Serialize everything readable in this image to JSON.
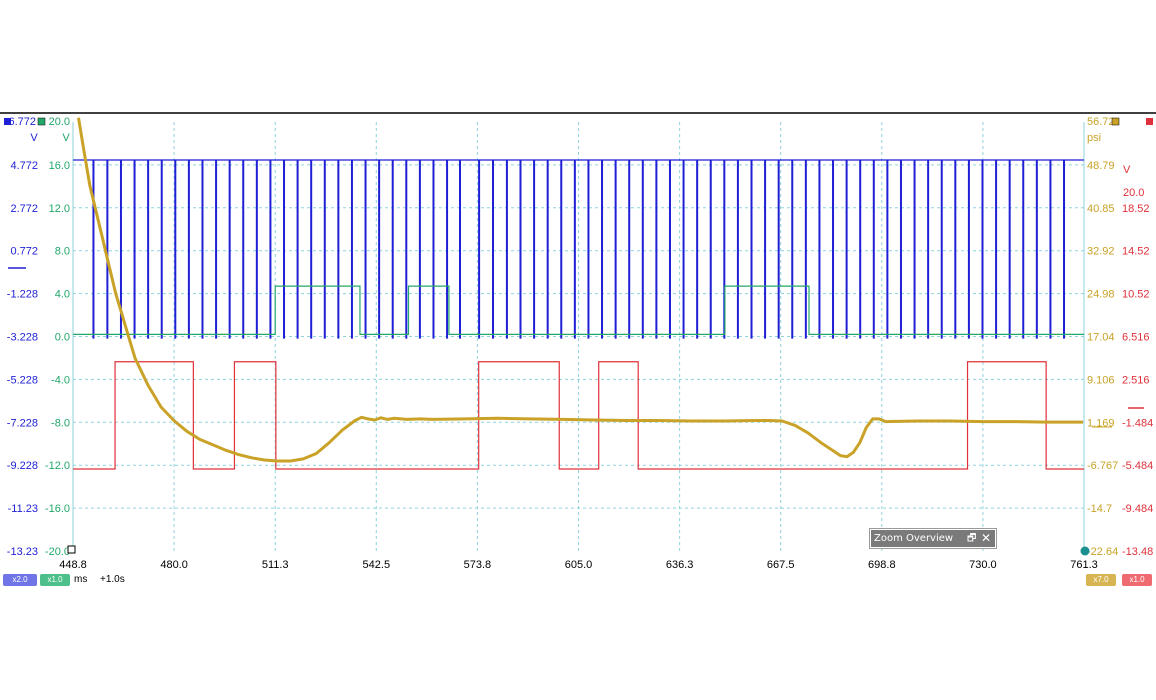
{
  "chart_data": {
    "type": "line",
    "title": "",
    "xlabel": "ms",
    "x_ticks": [
      "448.8",
      "480.0",
      "511.3",
      "542.5",
      "573.8",
      "605.0",
      "636.3",
      "667.5",
      "698.8",
      "730.0",
      "761.3"
    ],
    "xlim": [
      448.8,
      761.3
    ],
    "time_offset": "+1.0s",
    "grid": true,
    "axes": {
      "blue": {
        "unit": "V",
        "top": "6.772",
        "ticks": [
          "4.772",
          "2.772",
          "0.772",
          "-1.228",
          "-3.228",
          "-5.228",
          "-7.228",
          "-9.228",
          "-11.23",
          "-13.23"
        ],
        "color": "#1f1fd6"
      },
      "green": {
        "unit": "V",
        "top": "20.0",
        "ticks": [
          "16.0",
          "12.0",
          "8.0",
          "4.0",
          "0.0",
          "-4.0",
          "-8.0",
          "-12.0",
          "-16.0",
          "-20.0"
        ],
        "color": "#22a86a"
      },
      "gold": {
        "unit": "psi",
        "top": "56.72",
        "ticks": [
          "48.79",
          "40.85",
          "32.92",
          "24.98",
          "17.04",
          "9.106",
          "1.169",
          "-6.767",
          "-14.7",
          "-22.64"
        ],
        "color": "#c9a227"
      },
      "red": {
        "unit": "V",
        "top": "20.0",
        "ticks": [
          "18.52",
          "14.52",
          "10.52",
          "6.516",
          "2.516",
          "-1.484",
          "-5.484",
          "-9.484",
          "-13.48"
        ],
        "color": "#e0303a"
      }
    },
    "series": [
      {
        "name": "",
        "color": "#1f1fd6",
        "kind": "pulse-train",
        "high": 5.0,
        "low": -3.3,
        "pulse_times": [
          455,
          459.3,
          463.5,
          467.7,
          471.9,
          476.1,
          480.3,
          484.5,
          488.7,
          492.9,
          497.1,
          501.3,
          505.5,
          509.7,
          513.9,
          518.1,
          522.3,
          526.5,
          530.7,
          534.9,
          539.1,
          543.3,
          547.5,
          551.7,
          555.9,
          560.1,
          564.3,
          568.3,
          574.2,
          578.5,
          582.8,
          587,
          591.2,
          595.4,
          599.6,
          603.8,
          608,
          612.2,
          616.4,
          620.6,
          624.8,
          629,
          633.2,
          637.4,
          641.6,
          645.8,
          650,
          654.2,
          658.4,
          662.6,
          666.8,
          671,
          675.2,
          679.4,
          683.6,
          687.8,
          692,
          696.2,
          700.4,
          704.6,
          708.8,
          713,
          717.2,
          721.4,
          725.6,
          729.8,
          734,
          738.2,
          742.4,
          746.6,
          750.8,
          755
        ]
      },
      {
        "name": "",
        "color": "#22a86a",
        "kind": "digital",
        "high": 4.7,
        "low": 0.2,
        "edges": [
          [
            448.8,
            0
          ],
          [
            511.3,
            1
          ],
          [
            537.5,
            0
          ],
          [
            552.5,
            1
          ],
          [
            565.0,
            0
          ],
          [
            650.3,
            1
          ],
          [
            676.3,
            0
          ],
          [
            761.3,
            0
          ]
        ]
      },
      {
        "name": "",
        "color": "#e0303a",
        "kind": "digital",
        "high": 2.4,
        "low": -6.6,
        "edges": [
          [
            448.8,
            0
          ],
          [
            461.8,
            1
          ],
          [
            486.0,
            0
          ],
          [
            498.7,
            1
          ],
          [
            511.5,
            0
          ],
          [
            574.2,
            1
          ],
          [
            599.1,
            0
          ],
          [
            611.3,
            1
          ],
          [
            623.5,
            0
          ],
          [
            725.3,
            1
          ],
          [
            749.6,
            0
          ],
          [
            761.3,
            0
          ]
        ]
      },
      {
        "name": "",
        "color": "#c9a227",
        "kind": "analog",
        "x": [
          450.5,
          452,
          454,
          456,
          458,
          460,
          462,
          464,
          466,
          468,
          472,
          476,
          480,
          484,
          488,
          492,
          496,
          500,
          504,
          508,
          512,
          516,
          520,
          524,
          528,
          532,
          536,
          538,
          540,
          542,
          544,
          546,
          548,
          552,
          556,
          560,
          570,
          580,
          590,
          600,
          610,
          620,
          630,
          640,
          650,
          660,
          664,
          668,
          672,
          676,
          680,
          684,
          686,
          688,
          690,
          692,
          694,
          696,
          698,
          700,
          710,
          720,
          730,
          740,
          750,
          761
        ],
        "y": [
          57.5,
          52,
          45,
          40,
          35,
          30,
          25,
          21,
          17,
          13,
          8,
          4,
          1.5,
          -0.5,
          -2,
          -3,
          -4,
          -4.8,
          -5.4,
          -5.8,
          -6.0,
          -6.0,
          -5.6,
          -4.6,
          -2.6,
          -0.3,
          1.5,
          2.1,
          1.8,
          1.6,
          2.0,
          1.7,
          1.9,
          1.7,
          1.8,
          1.7,
          1.8,
          1.9,
          1.8,
          1.7,
          1.6,
          1.5,
          1.5,
          1.4,
          1.4,
          1.5,
          1.5,
          1.4,
          0.6,
          -0.8,
          -2.6,
          -4.2,
          -5.0,
          -5.2,
          -4.4,
          -2.6,
          0.2,
          1.8,
          1.8,
          1.3,
          1.4,
          1.4,
          1.3,
          1.3,
          1.2,
          1.2
        ]
      }
    ],
    "legend_pills": {
      "blue": {
        "label": "x2.0",
        "color": "#6f74e6"
      },
      "green": {
        "label": "x1.0",
        "color": "#4cbf8a"
      },
      "gold": {
        "label": "x7.0",
        "color": "#d7b553"
      },
      "red": {
        "label": "x1.0",
        "color": "#f06a72"
      }
    }
  },
  "zoom_overview": {
    "title": "Zoom Overview",
    "restore_glyph": "🗗",
    "close_glyph": "✕"
  }
}
